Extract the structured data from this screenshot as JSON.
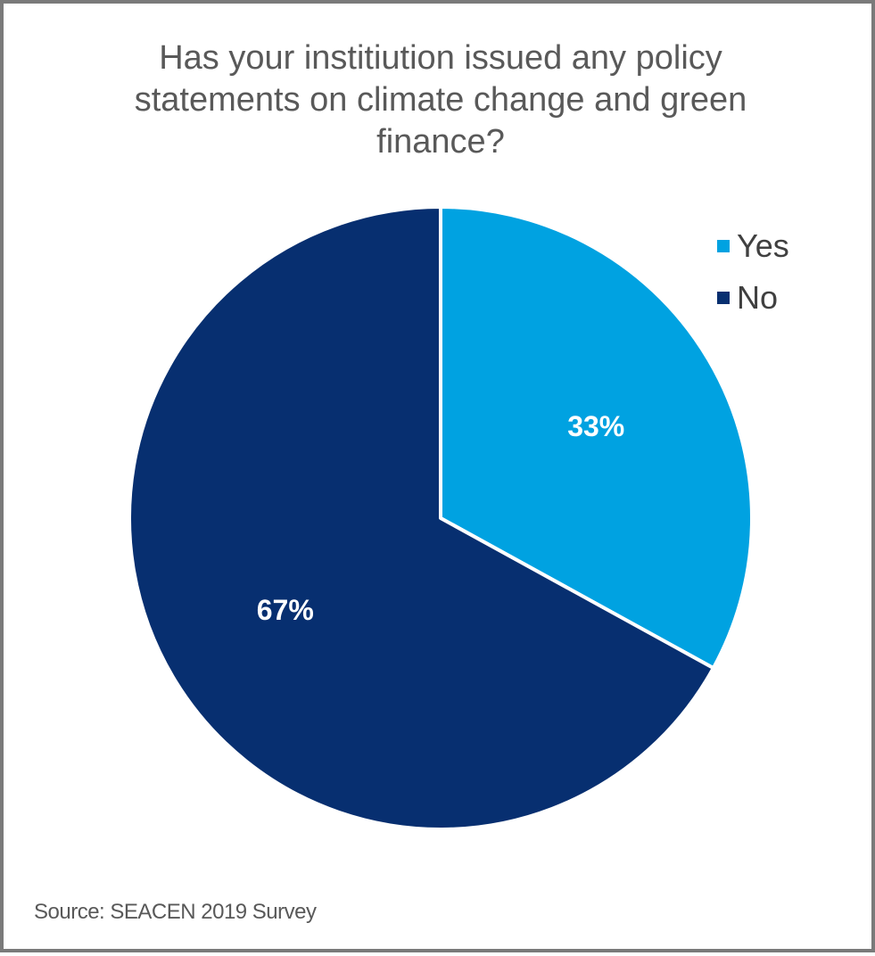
{
  "chart_data": {
    "type": "pie",
    "title_lines": [
      "Has your institiution issued any policy",
      "statements on climate change and green",
      "finance?"
    ],
    "categories": [
      "Yes",
      "No"
    ],
    "values": [
      33,
      67
    ],
    "data_labels": [
      "33%",
      "67%"
    ],
    "colors": [
      "#00a2e1",
      "#072f70"
    ],
    "legend_position": "top-right",
    "source": "Source: SEACEN 2019 Survey"
  }
}
